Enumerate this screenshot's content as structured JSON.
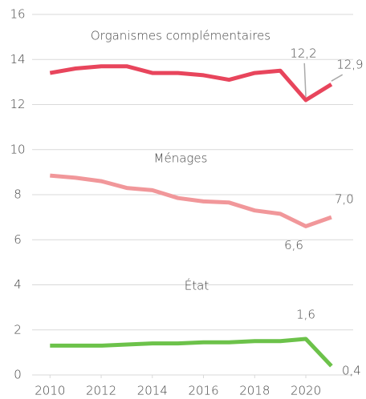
{
  "chart_data": {
    "type": "line",
    "x": [
      2010,
      2011,
      2012,
      2013,
      2014,
      2015,
      2016,
      2017,
      2018,
      2019,
      2020,
      2021
    ],
    "xlim": [
      2009.3,
      2021.85
    ],
    "xticks": [
      2010,
      2012,
      2014,
      2016,
      2018,
      2020
    ],
    "ylim": [
      0,
      16
    ],
    "yticks": [
      0,
      2,
      4,
      6,
      8,
      10,
      12,
      14,
      16
    ],
    "grid": true,
    "series": [
      {
        "name": "Organismes complémentaires",
        "color": "#e8455c",
        "values": [
          13.4,
          13.6,
          13.7,
          13.7,
          13.4,
          13.4,
          13.3,
          13.1,
          13.4,
          13.5,
          12.2,
          12.9
        ],
        "value_labels": [
          null,
          null,
          null,
          null,
          null,
          null,
          null,
          null,
          null,
          null,
          "12,2",
          "12,9"
        ]
      },
      {
        "name": "Ménages",
        "color": "#f1979a",
        "values": [
          8.85,
          8.75,
          8.6,
          8.3,
          8.2,
          7.85,
          7.7,
          7.65,
          7.3,
          7.15,
          6.6,
          7.0
        ],
        "value_labels": [
          null,
          null,
          null,
          null,
          null,
          null,
          null,
          null,
          null,
          null,
          "6,6",
          "7,0"
        ]
      },
      {
        "name": "État",
        "color": "#6cc24a",
        "values": [
          1.3,
          1.3,
          1.3,
          1.35,
          1.4,
          1.4,
          1.45,
          1.45,
          1.5,
          1.5,
          1.6,
          0.4
        ],
        "value_labels": [
          null,
          null,
          null,
          null,
          null,
          null,
          null,
          null,
          null,
          null,
          "1,6",
          "0,4"
        ]
      }
    ]
  }
}
